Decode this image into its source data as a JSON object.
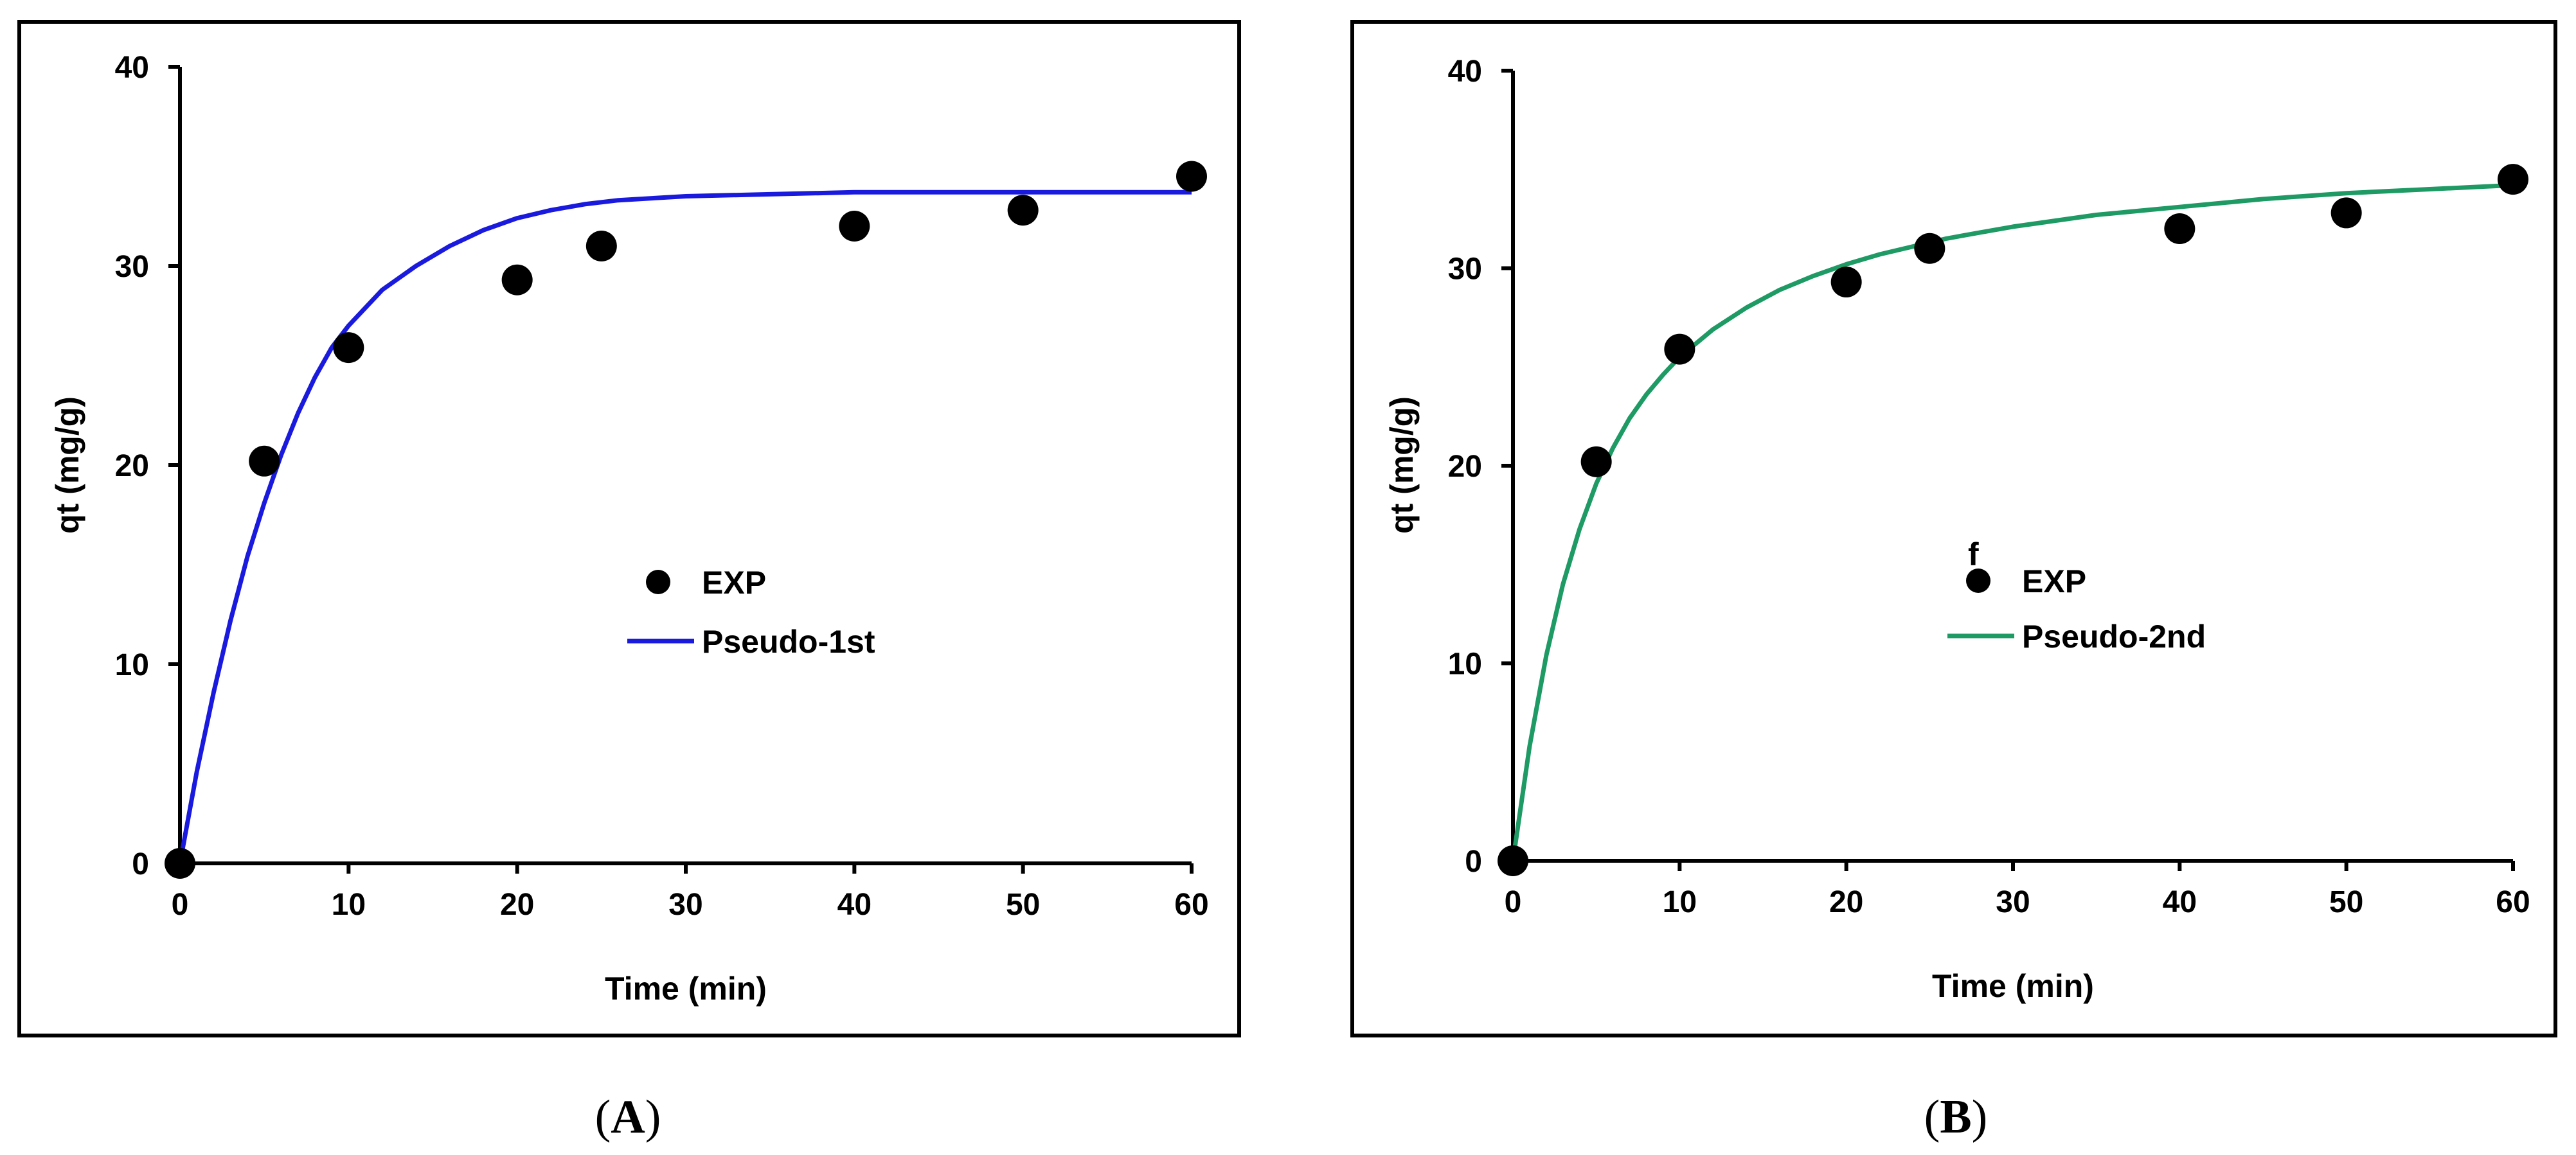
{
  "panels": [
    {
      "caption": "A",
      "chart_data": {
        "type": "scatter",
        "xlabel": "Time (min)",
        "ylabel": "qt (mg/g)",
        "xlim": [
          0,
          60
        ],
        "ylim": [
          0,
          40
        ],
        "xticks": [
          "0",
          "10",
          "20",
          "30",
          "40",
          "50",
          "60"
        ],
        "yticks": [
          "0",
          "10",
          "20",
          "30",
          "40"
        ],
        "grid": false,
        "legend_position": "center-right",
        "series": [
          {
            "name": "EXP",
            "kind": "points",
            "color": "#000000",
            "x": [
              0,
              5,
              10,
              20,
              25,
              40,
              50,
              60
            ],
            "y": [
              0,
              20.2,
              25.9,
              29.3,
              31.0,
              32.0,
              32.8,
              34.5
            ]
          },
          {
            "name": "Pseudo-1st",
            "kind": "line",
            "color": "#1a1adf",
            "x": [
              0,
              1,
              2,
              3,
              4,
              5,
              6,
              7,
              8,
              9,
              10,
              12,
              14,
              16,
              18,
              20,
              22,
              24,
              26,
              28,
              30,
              35,
              40,
              45,
              50,
              55,
              60
            ],
            "y": [
              0,
              4.6,
              8.6,
              12.2,
              15.4,
              18.1,
              20.5,
              22.6,
              24.4,
              25.9,
              27.0,
              28.8,
              30.0,
              31.0,
              31.8,
              32.4,
              32.8,
              33.1,
              33.3,
              33.4,
              33.5,
              33.6,
              33.7,
              33.7,
              33.7,
              33.7,
              33.7
            ]
          }
        ]
      }
    },
    {
      "caption": "B",
      "legend_mark": "f",
      "chart_data": {
        "type": "scatter",
        "xlabel": "Time (min)",
        "ylabel": "qt (mg/g)",
        "xlim": [
          0,
          60
        ],
        "ylim": [
          0,
          40
        ],
        "xticks": [
          "0",
          "10",
          "20",
          "30",
          "40",
          "50",
          "60"
        ],
        "yticks": [
          "0",
          "10",
          "20",
          "30",
          "40"
        ],
        "grid": false,
        "legend_position": "center",
        "series": [
          {
            "name": "EXP",
            "kind": "points",
            "color": "#000000",
            "x": [
              0,
              5,
              10,
              20,
              25,
              40,
              50,
              60
            ],
            "y": [
              0,
              20.2,
              25.9,
              29.3,
              31.0,
              32.0,
              32.8,
              34.5
            ]
          },
          {
            "name": "Pseudo-2nd",
            "kind": "line",
            "color": "#1e9a64",
            "x": [
              0,
              1,
              2,
              3,
              4,
              5,
              6,
              7,
              8,
              9,
              10,
              12,
              14,
              16,
              18,
              20,
              22,
              24,
              26,
              28,
              30,
              35,
              40,
              45,
              50,
              55,
              60
            ],
            "y": [
              0,
              5.8,
              10.4,
              14.0,
              16.8,
              19.1,
              20.9,
              22.4,
              23.6,
              24.6,
              25.5,
              26.9,
              28.0,
              28.9,
              29.6,
              30.2,
              30.7,
              31.1,
              31.5,
              31.8,
              32.1,
              32.7,
              33.1,
              33.5,
              33.8,
              34.0,
              34.2
            ]
          }
        ]
      }
    }
  ]
}
